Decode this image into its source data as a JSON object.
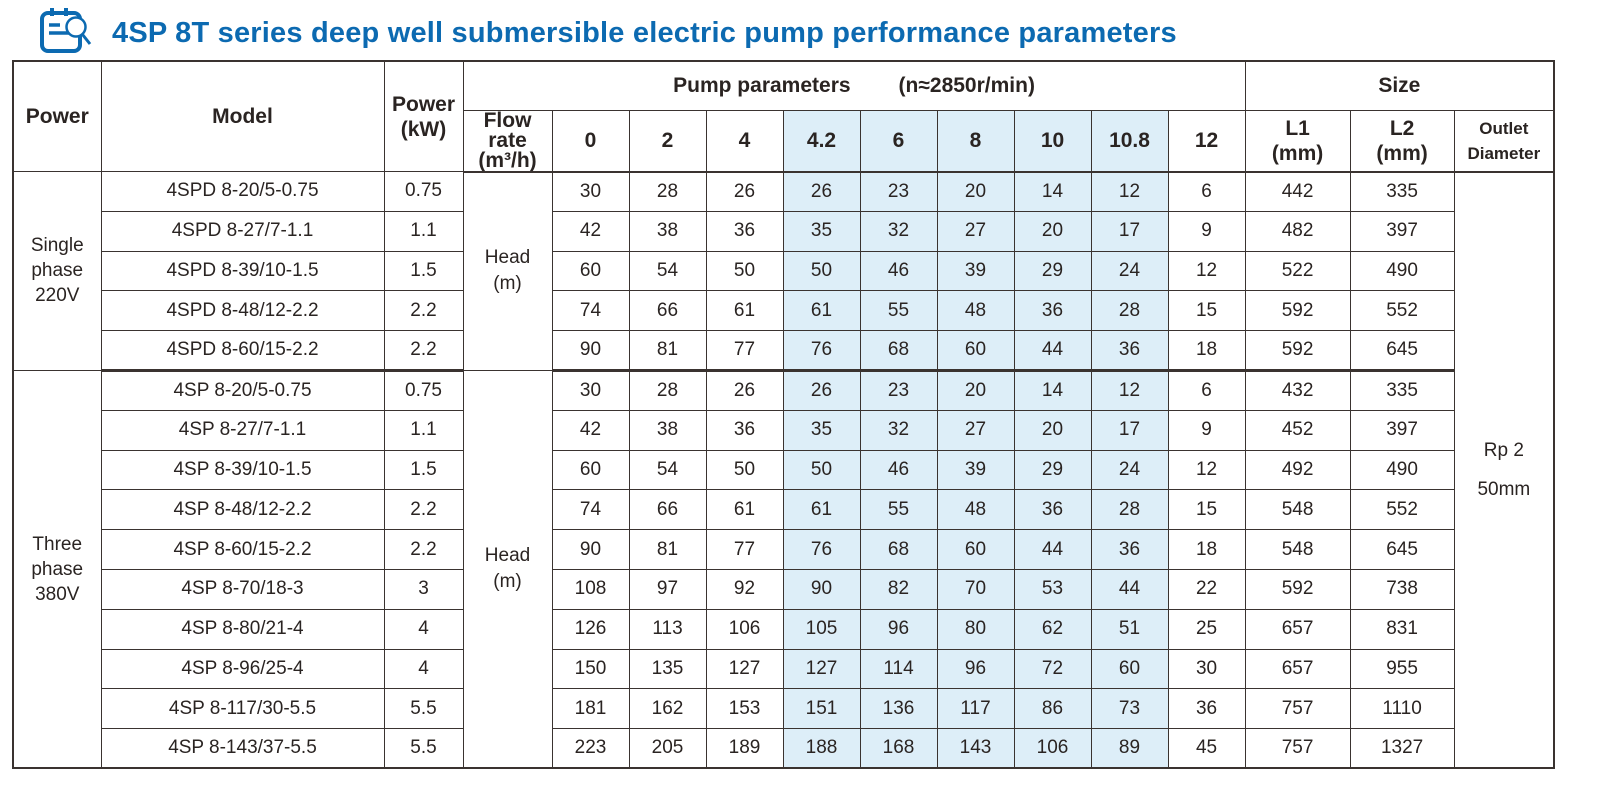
{
  "title": {
    "text": "4SP 8T series deep well submersible electric pump performance parameters",
    "icon": "clipboard-magnifier-icon",
    "accent_color": "#0c6ab1"
  },
  "table": {
    "header": {
      "power": "Power",
      "model": "Model",
      "power_kw": "Power\n(kW)",
      "pump_parameters": "Pump parameters",
      "speed": "(n≈2850r/min)",
      "flow_rate": "Flow rate\n(m³/h)",
      "flow_columns": [
        "0",
        "2",
        "4",
        "4.2",
        "6",
        "8",
        "10",
        "10.8",
        "12"
      ],
      "highlighted_columns": [
        "4.2",
        "6",
        "8",
        "10",
        "10.8"
      ],
      "size": "Size",
      "l1": "L1\n(mm)",
      "l2": "L2\n(mm)",
      "outlet": "Outlet\nDiameter"
    },
    "head_row_label": "Head\n(m)",
    "outlet_value": {
      "line1": "Rp 2",
      "line2": "50mm"
    },
    "colors": {
      "highlight": "#ddeef8",
      "border": "#3a3330",
      "text": "#2a2422"
    },
    "sections": [
      {
        "power_label": "Single\nphase\n220V",
        "rows": [
          {
            "model": "4SPD 8-20/5-0.75",
            "power_kw": "0.75",
            "heads": [
              30,
              28,
              26,
              26,
              23,
              20,
              14,
              12,
              6
            ],
            "l1": 442,
            "l2": 335
          },
          {
            "model": "4SPD 8-27/7-1.1",
            "power_kw": "1.1",
            "heads": [
              42,
              38,
              36,
              35,
              32,
              27,
              20,
              17,
              9
            ],
            "l1": 482,
            "l2": 397
          },
          {
            "model": "4SPD 8-39/10-1.5",
            "power_kw": "1.5",
            "heads": [
              60,
              54,
              50,
              50,
              46,
              39,
              29,
              24,
              12
            ],
            "l1": 522,
            "l2": 490
          },
          {
            "model": "4SPD 8-48/12-2.2",
            "power_kw": "2.2",
            "heads": [
              74,
              66,
              61,
              61,
              55,
              48,
              36,
              28,
              15
            ],
            "l1": 592,
            "l2": 552
          },
          {
            "model": "4SPD 8-60/15-2.2",
            "power_kw": "2.2",
            "heads": [
              90,
              81,
              77,
              76,
              68,
              60,
              44,
              36,
              18
            ],
            "l1": 592,
            "l2": 645
          }
        ]
      },
      {
        "power_label": "Three\nphase\n380V",
        "rows": [
          {
            "model": "4SP 8-20/5-0.75",
            "power_kw": "0.75",
            "heads": [
              30,
              28,
              26,
              26,
              23,
              20,
              14,
              12,
              6
            ],
            "l1": 432,
            "l2": 335
          },
          {
            "model": "4SP 8-27/7-1.1",
            "power_kw": "1.1",
            "heads": [
              42,
              38,
              36,
              35,
              32,
              27,
              20,
              17,
              9
            ],
            "l1": 452,
            "l2": 397
          },
          {
            "model": "4SP 8-39/10-1.5",
            "power_kw": "1.5",
            "heads": [
              60,
              54,
              50,
              50,
              46,
              39,
              29,
              24,
              12
            ],
            "l1": 492,
            "l2": 490
          },
          {
            "model": "4SP 8-48/12-2.2",
            "power_kw": "2.2",
            "heads": [
              74,
              66,
              61,
              61,
              55,
              48,
              36,
              28,
              15
            ],
            "l1": 548,
            "l2": 552
          },
          {
            "model": "4SP 8-60/15-2.2",
            "power_kw": "2.2",
            "heads": [
              90,
              81,
              77,
              76,
              68,
              60,
              44,
              36,
              18
            ],
            "l1": 548,
            "l2": 645
          },
          {
            "model": "4SP 8-70/18-3",
            "power_kw": "3",
            "heads": [
              108,
              97,
              92,
              90,
              82,
              70,
              53,
              44,
              22
            ],
            "l1": 592,
            "l2": 738
          },
          {
            "model": "4SP 8-80/21-4",
            "power_kw": "4",
            "heads": [
              126,
              113,
              106,
              105,
              96,
              80,
              62,
              51,
              25
            ],
            "l1": 657,
            "l2": 831
          },
          {
            "model": "4SP 8-96/25-4",
            "power_kw": "4",
            "heads": [
              150,
              135,
              127,
              127,
              114,
              96,
              72,
              60,
              30
            ],
            "l1": 657,
            "l2": 955
          },
          {
            "model": "4SP 8-117/30-5.5",
            "power_kw": "5.5",
            "heads": [
              181,
              162,
              153,
              151,
              136,
              117,
              86,
              73,
              36
            ],
            "l1": 757,
            "l2": 1110
          },
          {
            "model": "4SP 8-143/37-5.5",
            "power_kw": "5.5",
            "heads": [
              223,
              205,
              189,
              188,
              168,
              143,
              106,
              89,
              45
            ],
            "l1": 757,
            "l2": 1327
          }
        ]
      }
    ]
  }
}
